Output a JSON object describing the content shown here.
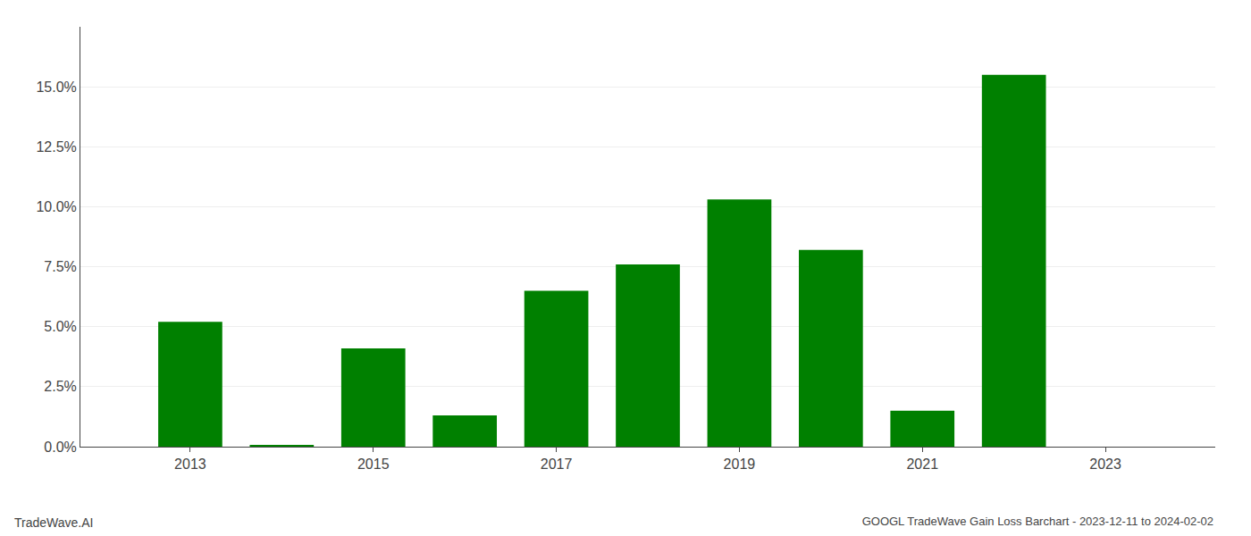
{
  "chart_data": {
    "type": "bar",
    "title": "GOOGL TradeWave Gain Loss Barchart - 2023-12-11 to 2024-02-02",
    "annotations": [
      "TradeWave.AI"
    ],
    "x": [
      2013,
      2014,
      2015,
      2016,
      2017,
      2018,
      2019,
      2020,
      2021,
      2022,
      2023
    ],
    "values": [
      0.052,
      0.0004,
      0.041,
      0.013,
      0.065,
      0.076,
      0.103,
      0.082,
      0.015,
      0.155,
      0.0
    ],
    "color": "#008000",
    "xlim": [
      2011.8,
      2024.2
    ],
    "xticks": [
      2013,
      2015,
      2017,
      2019,
      2021,
      2023
    ],
    "ylim": [
      0,
      0.175
    ],
    "yticks": [
      {
        "value": 0.0,
        "label": "0.0%"
      },
      {
        "value": 0.025,
        "label": "2.5%"
      },
      {
        "value": 0.05,
        "label": "5.0%"
      },
      {
        "value": 0.075,
        "label": "7.5%"
      },
      {
        "value": 0.1,
        "label": "10.0%"
      },
      {
        "value": 0.125,
        "label": "12.5%"
      },
      {
        "value": 0.15,
        "label": "15.0%"
      }
    ],
    "grid": true
  }
}
